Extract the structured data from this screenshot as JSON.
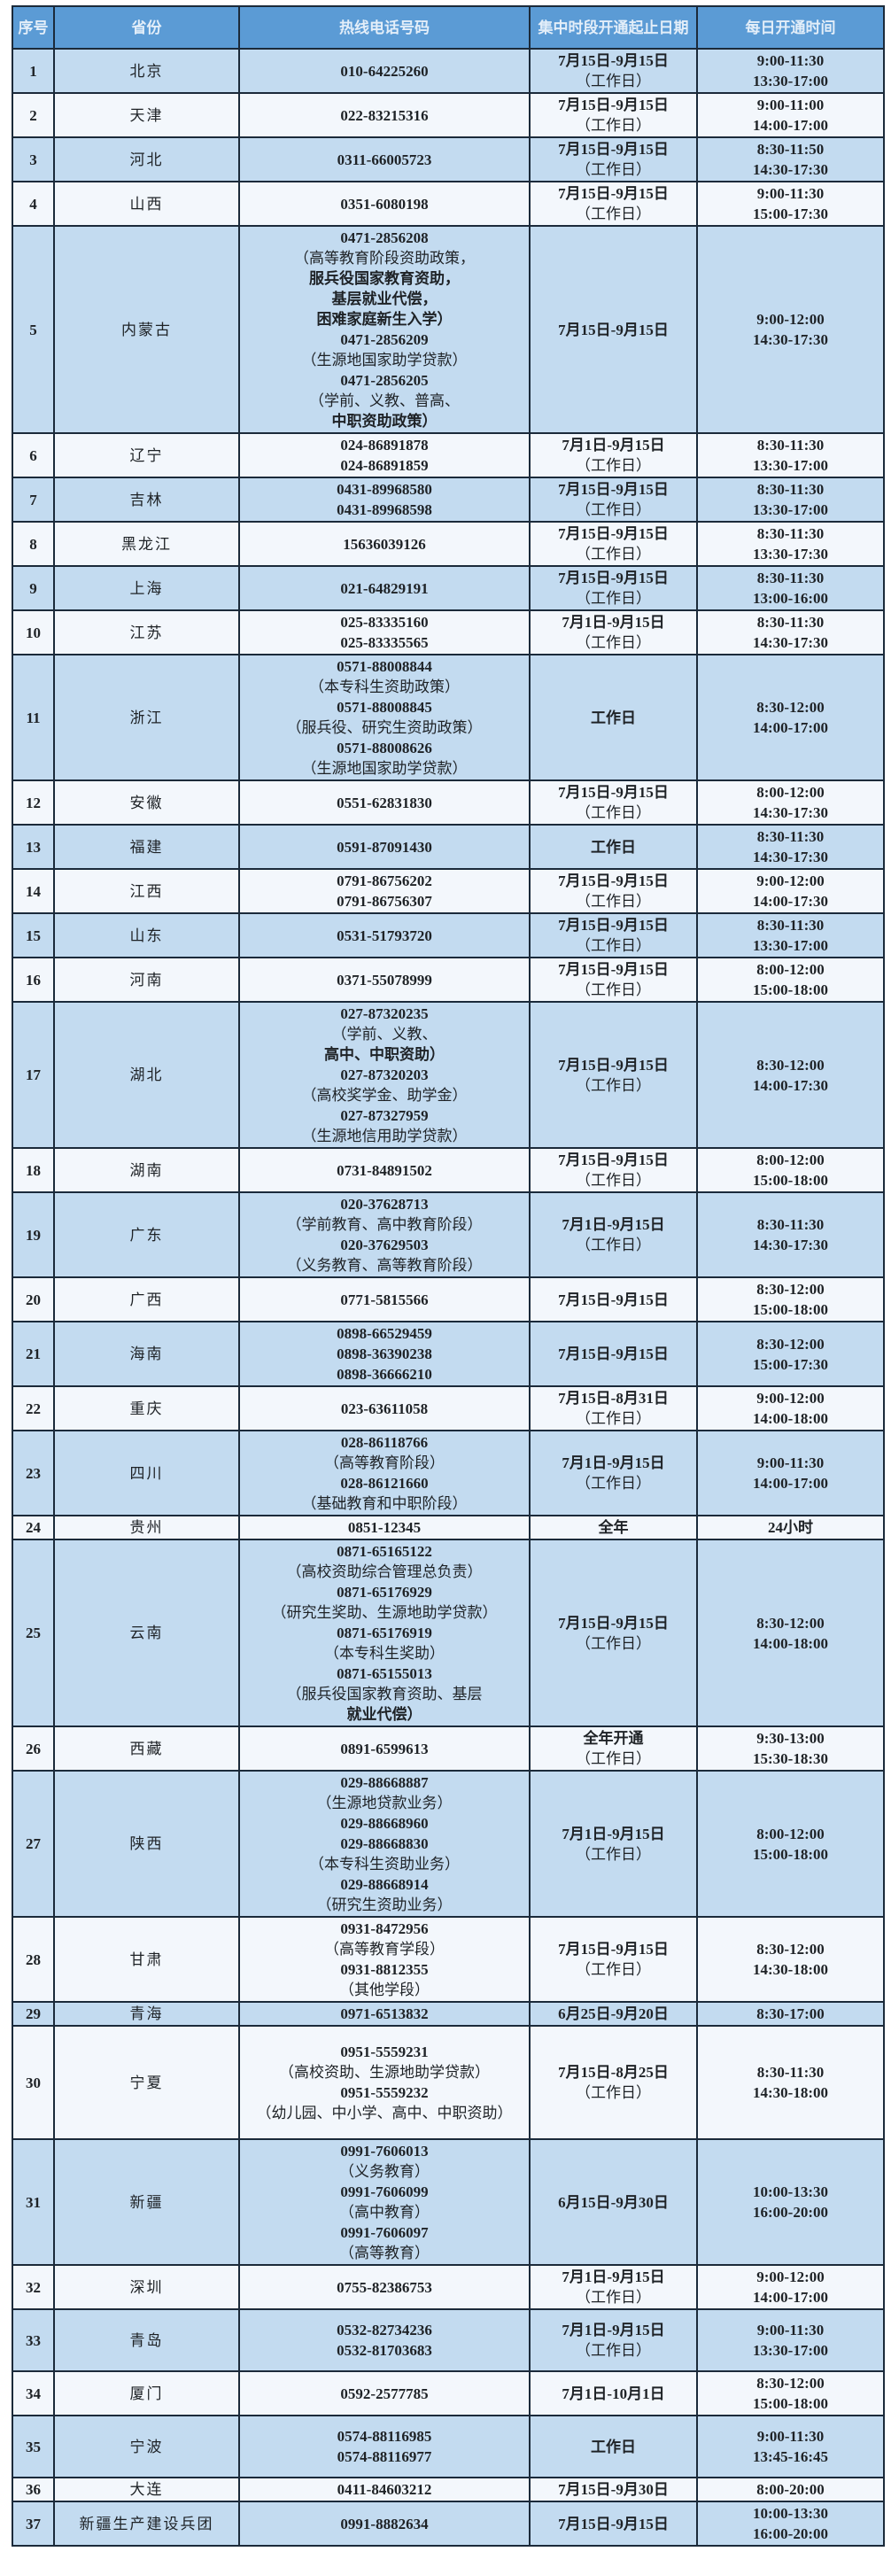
{
  "table": {
    "headers": [
      "序号",
      "省份",
      "热线电话号码",
      "集中时段开通\n起止日期",
      "每日开通时间"
    ],
    "header_colors": {
      "header_bg": "#5b9bd5",
      "row_alt": "#c3dbf0",
      "row": "#f3f7fc",
      "border": "#1b2a3a"
    },
    "rows": [
      {
        "no": "1",
        "province": "北京",
        "phones": [
          "010-64225260"
        ],
        "dates": [
          "7月15日-9月15日",
          "（工作日）"
        ],
        "hours": [
          "9:00-11:30",
          "13:30-17:00"
        ]
      },
      {
        "no": "2",
        "province": "天津",
        "phones": [
          "022-83215316"
        ],
        "dates": [
          "7月15日-9月15日",
          "（工作日）"
        ],
        "hours": [
          "9:00-11:00",
          "14:00-17:00"
        ]
      },
      {
        "no": "3",
        "province": "河北",
        "phones": [
          "0311-66005723"
        ],
        "dates": [
          "7月15日-9月15日",
          "（工作日）"
        ],
        "hours": [
          "8:30-11:50",
          "14:30-17:30"
        ]
      },
      {
        "no": "4",
        "province": "山西",
        "phones": [
          "0351-6080198"
        ],
        "dates": [
          "7月15日-9月15日",
          "（工作日）"
        ],
        "hours": [
          "9:00-11:30",
          "15:00-17:30"
        ]
      },
      {
        "no": "5",
        "province": "内蒙古",
        "phones": [
          "0471-2856208",
          "（高等教育阶段资助政策，",
          "服兵役国家教育资助，",
          "基层就业代偿，",
          "困难家庭新生入学）",
          "0471-2856209",
          "（生源地国家助学贷款）",
          "0471-2856205",
          "（学前、义教、普高、",
          "中职资助政策）"
        ],
        "dates": [
          "7月15日-9月15日"
        ],
        "hours": [
          "9:00-12:00",
          "14:30-17:30"
        ]
      },
      {
        "no": "6",
        "province": "辽宁",
        "phones": [
          "024-86891878",
          "024-86891859"
        ],
        "dates": [
          "7月1日-9月15日",
          "（工作日）"
        ],
        "hours": [
          "8:30-11:30",
          "13:30-17:00"
        ]
      },
      {
        "no": "7",
        "province": "吉林",
        "phones": [
          "0431-89968580",
          "0431-89968598"
        ],
        "dates": [
          "7月15日-9月15日",
          "（工作日）"
        ],
        "hours": [
          "8:30-11:30",
          "13:30-17:00"
        ]
      },
      {
        "no": "8",
        "province": "黑龙江",
        "phones": [
          "15636039126"
        ],
        "dates": [
          "7月15日-9月15日",
          "（工作日）"
        ],
        "hours": [
          "8:30-11:30",
          "13:30-17:30"
        ]
      },
      {
        "no": "9",
        "province": "上海",
        "phones": [
          "021-64829191"
        ],
        "dates": [
          "7月15日-9月15日",
          "（工作日）"
        ],
        "hours": [
          "8:30-11:30",
          "13:00-16:00"
        ]
      },
      {
        "no": "10",
        "province": "江苏",
        "phones": [
          "025-83335160",
          "025-83335565"
        ],
        "dates": [
          "7月1日-9月15日",
          "（工作日）"
        ],
        "hours": [
          "8:30-11:30",
          "14:30-17:30"
        ]
      },
      {
        "no": "11",
        "province": "浙江",
        "phones": [
          "0571-88008844",
          "（本专科生资助政策）",
          "0571-88008845",
          "（服兵役、研究生资助政策）",
          "0571-88008626",
          "（生源地国家助学贷款）"
        ],
        "dates": [
          "工作日"
        ],
        "hours": [
          "8:30-12:00",
          "14:00-17:00"
        ]
      },
      {
        "no": "12",
        "province": "安徽",
        "phones": [
          "0551-62831830"
        ],
        "dates": [
          "7月15日-9月15日",
          "（工作日）"
        ],
        "hours": [
          "8:00-12:00",
          "14:30-17:30"
        ]
      },
      {
        "no": "13",
        "province": "福建",
        "phones": [
          "0591-87091430"
        ],
        "dates": [
          "工作日"
        ],
        "hours": [
          "8:30-11:30",
          "14:30-17:30"
        ]
      },
      {
        "no": "14",
        "province": "江西",
        "phones": [
          "0791-86756202",
          "0791-86756307"
        ],
        "dates": [
          "7月15日-9月15日",
          "（工作日）"
        ],
        "hours": [
          "9:00-12:00",
          "14:00-17:30"
        ]
      },
      {
        "no": "15",
        "province": "山东",
        "phones": [
          "0531-51793720"
        ],
        "dates": [
          "7月15日-9月15日",
          "（工作日）"
        ],
        "hours": [
          "8:30-11:30",
          "13:30-17:00"
        ]
      },
      {
        "no": "16",
        "province": "河南",
        "phones": [
          "0371-55078999"
        ],
        "dates": [
          "7月15日-9月15日",
          "（工作日）"
        ],
        "hours": [
          "8:00-12:00",
          "15:00-18:00"
        ]
      },
      {
        "no": "17",
        "province": "湖北",
        "phones": [
          "027-87320235",
          "（学前、义教、",
          "高中、中职资助）",
          "027-87320203",
          "（高校奖学金、助学金）",
          "027-87327959",
          "（生源地信用助学贷款）"
        ],
        "dates": [
          "7月15日-9月15日",
          "（工作日）"
        ],
        "hours": [
          "8:30-12:00",
          "14:00-17:30"
        ]
      },
      {
        "no": "18",
        "province": "湖南",
        "phones": [
          "0731-84891502"
        ],
        "dates": [
          "7月15日-9月15日",
          "（工作日）"
        ],
        "hours": [
          "8:00-12:00",
          "15:00-18:00"
        ]
      },
      {
        "no": "19",
        "province": "广东",
        "phones": [
          "020-37628713",
          "（学前教育、高中教育阶段）",
          "020-37629503",
          "（义务教育、高等教育阶段）"
        ],
        "dates": [
          "7月1日-9月15日",
          "（工作日）"
        ],
        "hours": [
          "8:30-11:30",
          "14:30-17:30"
        ]
      },
      {
        "no": "20",
        "province": "广西",
        "phones": [
          "0771-5815566"
        ],
        "dates": [
          "7月15日-9月15日"
        ],
        "hours": [
          "8:30-12:00",
          "15:00-18:00"
        ]
      },
      {
        "no": "21",
        "province": "海南",
        "phones": [
          "0898-66529459",
          "0898-36390238",
          "0898-36666210"
        ],
        "dates": [
          "7月15日-9月15日"
        ],
        "hours": [
          "8:30-12:00",
          "15:00-17:30"
        ]
      },
      {
        "no": "22",
        "province": "重庆",
        "phones": [
          "023-63611058"
        ],
        "dates": [
          "7月15日-8月31日",
          "（工作日）"
        ],
        "hours": [
          "9:00-12:00",
          "14:00-18:00"
        ]
      },
      {
        "no": "23",
        "province": "四川",
        "phones": [
          "028-86118766",
          "（高等教育阶段）",
          "028-86121660",
          "（基础教育和中职阶段）"
        ],
        "dates": [
          "7月1日-9月15日",
          "（工作日）"
        ],
        "hours": [
          "9:00-11:30",
          "14:00-17:00"
        ]
      },
      {
        "no": "24",
        "province": "贵州",
        "phones": [
          "0851-12345"
        ],
        "dates": [
          "全年"
        ],
        "hours": [
          "24小时"
        ]
      },
      {
        "no": "25",
        "province": "云南",
        "phones": [
          "0871-65165122",
          "（高校资助综合管理总负责）",
          "0871-65176929",
          "（研究生奖助、生源地助学贷款）",
          "0871-65176919",
          "（本专科生奖助）",
          "0871-65155013",
          "（服兵役国家教育资助、基层",
          "就业代偿）"
        ],
        "dates": [
          "7月15日-9月15日",
          "（工作日）"
        ],
        "hours": [
          "8:30-12:00",
          "14:00-18:00"
        ]
      },
      {
        "no": "26",
        "province": "西藏",
        "phones": [
          "0891-6599613"
        ],
        "dates": [
          "全年开通",
          "（工作日）"
        ],
        "hours": [
          "9:30-13:00",
          "15:30-18:30"
        ]
      },
      {
        "no": "27",
        "province": "陕西",
        "phones": [
          "029-88668887",
          "（生源地贷款业务）",
          "029-88668960",
          "029-88668830",
          "（本专科生资助业务）",
          "029-88668914",
          "（研究生资助业务）"
        ],
        "dates": [
          "7月1日-9月15日",
          "（工作日）"
        ],
        "hours": [
          "8:00-12:00",
          "15:00-18:00"
        ]
      },
      {
        "no": "28",
        "province": "甘肃",
        "phones": [
          "0931-8472956",
          "（高等教育学段）",
          "0931-8812355",
          "（其他学段）"
        ],
        "dates": [
          "7月15日-9月15日",
          "（工作日）"
        ],
        "hours": [
          "8:30-12:00",
          "14:30-18:00"
        ]
      },
      {
        "no": "29",
        "province": "青海",
        "phones": [
          "0971-6513832"
        ],
        "dates": [
          "6月25日-9月20日"
        ],
        "hours": [
          "8:30-17:00"
        ]
      },
      {
        "no": "30",
        "province": "宁夏",
        "phones": [
          "0951-5559231",
          "（高校资助、生源地助学贷款）",
          "0951-5559232",
          "（幼儿园、中小学、高中、中职资助）"
        ],
        "dates": [
          "7月15日-8月25日",
          "（工作日）"
        ],
        "hours": [
          "8:30-11:30",
          "14:30-18:00"
        ]
      },
      {
        "no": "31",
        "province": "新疆",
        "phones": [
          "0991-7606013",
          "（义务教育）",
          "0991-7606099",
          "（高中教育）",
          "0991-7606097",
          "（高等教育）"
        ],
        "dates": [
          "6月15日-9月30日"
        ],
        "hours": [
          "10:00-13:30",
          "16:00-20:00"
        ]
      },
      {
        "no": "32",
        "province": "深圳",
        "phones": [
          "0755-82386753"
        ],
        "dates": [
          "7月1日-9月15日",
          "（工作日）"
        ],
        "hours": [
          "9:00-12:00",
          "14:00-17:00"
        ]
      },
      {
        "no": "33",
        "province": "青岛",
        "phones": [
          "0532-82734236",
          "0532-81703683"
        ],
        "dates": [
          "7月1日-9月15日",
          "（工作日）"
        ],
        "hours": [
          "9:00-11:30",
          "13:30-17:00"
        ]
      },
      {
        "no": "34",
        "province": "厦门",
        "phones": [
          "0592-2577785"
        ],
        "dates": [
          "7月1日-10月1日"
        ],
        "hours": [
          "8:30-12:00",
          "15:00-18:00"
        ]
      },
      {
        "no": "35",
        "province": "宁波",
        "phones": [
          "0574-88116985",
          "0574-88116977"
        ],
        "dates": [
          "工作日"
        ],
        "hours": [
          "9:00-11:30",
          "13:45-16:45"
        ]
      },
      {
        "no": "36",
        "province": "大连",
        "phones": [
          "0411-84603212"
        ],
        "dates": [
          "7月15日-9月30日"
        ],
        "hours": [
          "8:00-20:00"
        ]
      },
      {
        "no": "37",
        "province": "新疆生产建设兵团",
        "phones": [
          "0991-8882634"
        ],
        "dates": [
          "7月15日-9月15日"
        ],
        "hours": [
          "10:00-13:30",
          "16:00-20:00"
        ]
      }
    ]
  }
}
